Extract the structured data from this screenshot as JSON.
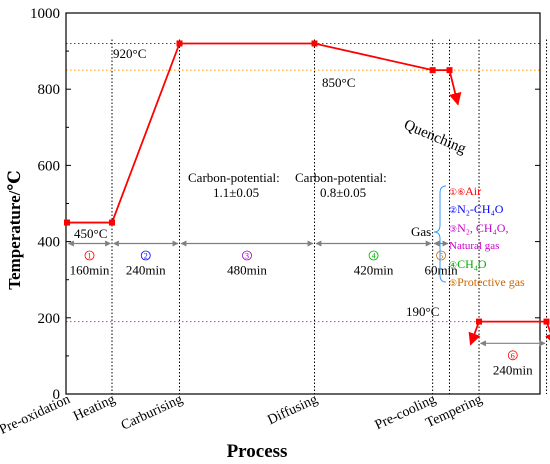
{
  "chart_data": {
    "type": "line",
    "title": "",
    "xlabel": "Process",
    "ylabel": "Temperature/℃",
    "ylim": [
      0,
      1000
    ],
    "yticks": [
      0,
      200,
      400,
      600,
      800,
      1000
    ],
    "grid": false,
    "colors": {
      "curve": "#ff0000",
      "ref_920": "#3333ff",
      "ref_850": "#ff9900",
      "ref_190": "#cc33cc",
      "vlines": "#000000",
      "arrows": "#808080",
      "gas_brace": "#3399ff"
    },
    "series": [
      {
        "values": [
          {
            "x": 0,
            "y": 450
          },
          {
            "x": 160,
            "y": 450
          },
          {
            "x": 400,
            "y": 920
          },
          {
            "x": 880,
            "y": 920
          },
          {
            "x": 1300,
            "y": 850
          },
          {
            "x": 1360,
            "y": 850
          },
          {
            "x": 1390,
            "y": 760
          }
        ]
      },
      {
        "values": [
          {
            "x": 1435,
            "y": 130
          },
          {
            "x": 1465,
            "y": 190
          },
          {
            "x": 1705,
            "y": 190
          },
          {
            "x": 1735,
            "y": 130
          }
        ]
      }
    ],
    "reference_lines": [
      {
        "y": 920,
        "label": "920°C",
        "color": "#3333ff"
      },
      {
        "y": 850,
        "label": "850°C",
        "color": "#ff9900"
      },
      {
        "y": 190,
        "label": "190°C",
        "color": "#cc33cc"
      }
    ],
    "start_label": "450°C",
    "phase_boundaries_x": [
      160,
      400,
      880,
      1300,
      1360,
      1465,
      1705
    ],
    "stages": [
      {
        "marker": "①",
        "duration": "160min",
        "x0": 0,
        "x1": 160,
        "color": "#ff0000"
      },
      {
        "marker": "②",
        "duration": "240min",
        "x0": 160,
        "x1": 400,
        "color": "#0000ff"
      },
      {
        "marker": "③",
        "duration": "480min",
        "x0": 400,
        "x1": 880,
        "color": "#9900cc"
      },
      {
        "marker": "④",
        "duration": "420min",
        "x0": 880,
        "x1": 1300,
        "color": "#00aa00"
      },
      {
        "marker": "⑤",
        "duration": "60min",
        "x0": 1300,
        "x1": 1360,
        "color": "#cc6600"
      },
      {
        "marker": "⑥",
        "duration": "240min",
        "x0": 1465,
        "x1": 1705,
        "color": "#ff0000"
      }
    ],
    "carbon_potential": [
      {
        "line1": "Carbon-potential:",
        "line2": "1.1±0.05"
      },
      {
        "line1": "Carbon-potential:",
        "line2": "0.8±0.05"
      }
    ],
    "x_tick_labels": [
      "Pre-oxidation",
      "Heating",
      "Carburising",
      "Diffusing",
      "Pre-cooling",
      "Tempering"
    ],
    "quenching_label": "Quenching",
    "gas_legend": {
      "title": "Gas",
      "items": [
        {
          "marker": "①⑥",
          "text": "Air",
          "color": "#ff0000"
        },
        {
          "marker": "②",
          "text": "N₂-CH₄O",
          "color": "#0000ff"
        },
        {
          "marker": "③",
          "text": "N₂, CH₄O,",
          "color": "#cc00cc"
        },
        {
          "marker": "",
          "text": "Natural gas",
          "color": "#cc00cc"
        },
        {
          "marker": "④",
          "text": "CH₄O",
          "color": "#00aa00"
        },
        {
          "marker": "⑤",
          "text": "Protective gas",
          "color": "#cc6600"
        }
      ]
    }
  }
}
